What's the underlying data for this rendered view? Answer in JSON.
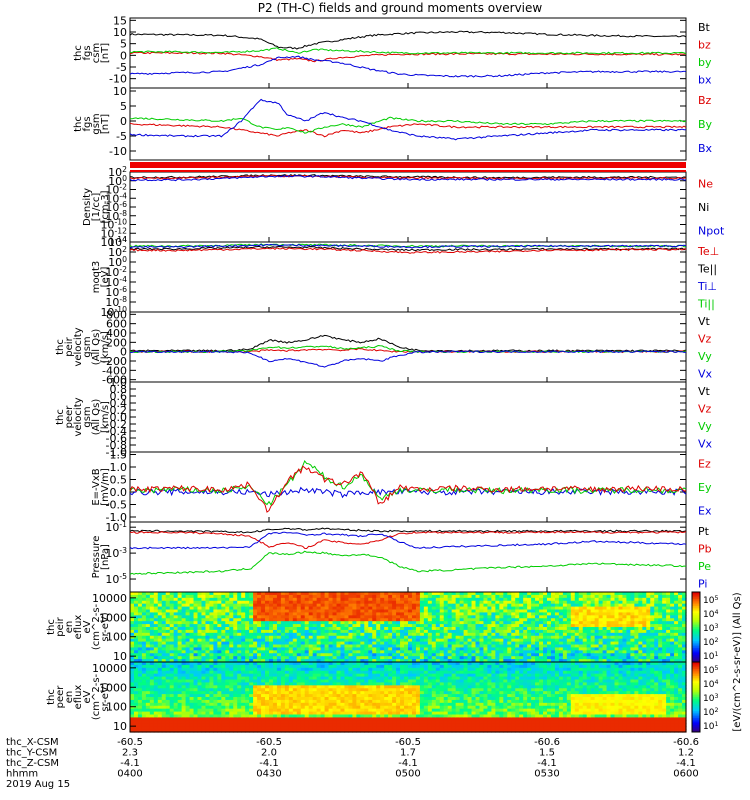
{
  "title": "P2 (TH-C) fields and ground moments overview",
  "footer": {
    "row_labels": [
      "thc_X-CSM",
      "thc_Y-CSM",
      "thc_Z-CSM",
      "hhmm",
      "2019 Aug 15"
    ],
    "ticks": [
      {
        "x": "-60.5",
        "y": "2.3",
        "z": "-4.1",
        "t": "0400"
      },
      {
        "x": "-60.5",
        "y": "2.0",
        "z": "-4.1",
        "t": "0430"
      },
      {
        "x": "-60.5",
        "y": "1.7",
        "z": "-4.1",
        "t": "0500"
      },
      {
        "x": "-60.6",
        "y": "1.5",
        "z": "-4.1",
        "t": "0530"
      },
      {
        "x": "-60.6",
        "y": "1.2",
        "z": "-4.1",
        "t": "0600"
      }
    ]
  },
  "colorbars": {
    "ticks": [
      "10^1",
      "10^2",
      "10^3",
      "10^4",
      "10^5"
    ],
    "label": "[eV/(cm^2-s-sr-eV)] (All Qs)"
  },
  "colors": {
    "black": "#000000",
    "red": "#dd0000",
    "green": "#00cc00",
    "blue": "#0000dd"
  },
  "chart_data": [
    {
      "id": "fgs_csm",
      "type": "line",
      "ylabel": [
        "thc",
        "fgs",
        "csm",
        "[nT]"
      ],
      "yticks": [
        "15",
        "10",
        "5",
        "0",
        "-5",
        "-10"
      ],
      "ylim": [
        -14,
        16
      ],
      "legend": [
        {
          "name": "Bt",
          "color": "#000000"
        },
        {
          "name": "bz",
          "color": "#dd0000"
        },
        {
          "name": "by",
          "color": "#00cc00"
        },
        {
          "name": "bx",
          "color": "#0000dd"
        }
      ],
      "x": [
        0,
        10,
        20,
        28,
        32,
        36,
        40,
        45,
        52,
        58,
        62,
        70,
        80,
        90,
        100,
        110,
        120
      ],
      "series": [
        {
          "name": "Bt",
          "color": "#000000",
          "values": [
            9,
            8.8,
            8.6,
            7,
            3.5,
            3,
            5,
            6.5,
            8.5,
            9.3,
            9.6,
            10,
            9.8,
            9,
            8.5,
            8.2,
            8
          ]
        },
        {
          "name": "bz",
          "color": "#dd0000",
          "values": [
            1,
            1,
            0.9,
            -0.5,
            -2,
            -1.5,
            -2.5,
            -1,
            0,
            0.5,
            0.5,
            0.6,
            0.6,
            0.5,
            0.5,
            0.4,
            0.4
          ]
        },
        {
          "name": "by",
          "color": "#00cc00",
          "values": [
            1.5,
            1.5,
            1.2,
            2,
            3,
            1,
            2.5,
            2,
            1.5,
            1,
            1,
            1,
            1,
            1,
            1,
            1,
            1
          ]
        },
        {
          "name": "bx",
          "color": "#0000dd",
          "values": [
            -8,
            -7.5,
            -7,
            -4,
            -1,
            -0.5,
            -2,
            -3,
            -6,
            -8,
            -8.5,
            -9,
            -8.8,
            -7.5,
            -7,
            -7,
            -7
          ]
        }
      ]
    },
    {
      "id": "fgs_gsm",
      "type": "line",
      "ylabel": [
        "thc",
        "fgs",
        "gsm",
        "[nT]"
      ],
      "yticks": [
        "10",
        "5",
        "0",
        "-5",
        "-10"
      ],
      "ylim": [
        -13,
        11
      ],
      "legend": [
        {
          "name": "Bz",
          "color": "#dd0000"
        },
        {
          "name": "By",
          "color": "#00cc00"
        },
        {
          "name": "Bx",
          "color": "#0000dd"
        }
      ],
      "x": [
        0,
        10,
        20,
        24,
        28,
        32,
        34,
        38,
        42,
        46,
        50,
        56,
        62,
        70,
        80,
        90,
        100,
        110,
        120
      ],
      "series": [
        {
          "name": "Bz",
          "color": "#dd0000",
          "values": [
            -1,
            -1.5,
            -2,
            -3,
            -4,
            -5,
            -4,
            -3,
            -5,
            -3,
            -4,
            -2,
            -1,
            -2,
            -2,
            -2,
            -2,
            -2,
            -2
          ]
        },
        {
          "name": "By",
          "color": "#00cc00",
          "values": [
            1,
            0.5,
            0,
            1,
            -2,
            -3,
            -2,
            -4,
            -2,
            -1,
            -2,
            1,
            0,
            0,
            -1,
            -1,
            0,
            0,
            0
          ]
        },
        {
          "name": "Bx",
          "color": "#0000dd",
          "values": [
            -4.5,
            -5,
            -5,
            0,
            7,
            6,
            2,
            0,
            3,
            1,
            0,
            -3,
            -5,
            -6,
            -5,
            -4,
            -3,
            -3,
            -3
          ]
        }
      ]
    },
    {
      "id": "density",
      "type": "line",
      "log": true,
      "ylabel": [
        "Density",
        "[1/cc]",
        "[cm-3]"
      ],
      "yticks": [
        "10^2",
        "10^0",
        "10^-2",
        "10^-4",
        "10^-6",
        "10^-8",
        "10^-10",
        "10^-12",
        "10^-14"
      ],
      "ylim": [
        -14,
        2
      ],
      "legend": [
        {
          "name": "Ne",
          "color": "#dd0000"
        },
        {
          "name": "Ni",
          "color": "#000000"
        },
        {
          "name": "Npot",
          "color": "#0000dd"
        }
      ],
      "x": [
        0,
        10,
        20,
        30,
        40,
        50,
        60,
        70,
        80,
        90,
        100,
        110,
        120
      ],
      "series": [
        {
          "name": "Ni",
          "color": "#000000",
          "values": [
            0.8,
            0.8,
            1,
            1.3,
            1.2,
            1,
            0.9,
            0.8,
            0.7,
            0.8,
            0.8,
            0.8,
            0.8
          ]
        },
        {
          "name": "Ne",
          "color": "#dd0000",
          "values": [
            0.6,
            0.6,
            0.8,
            1.1,
            1,
            0.8,
            0.6,
            0.6,
            0.5,
            0.6,
            0.6,
            0.6,
            0.6
          ]
        },
        {
          "name": "Npot",
          "color": "#0000dd",
          "values": [
            0.2,
            0.2,
            0.5,
            1,
            1,
            0.6,
            0.3,
            0.3,
            0.3,
            0.3,
            0.3,
            0.3,
            0.3
          ]
        }
      ]
    },
    {
      "id": "moms",
      "type": "line",
      "log": true,
      "ylabel": [
        "moqt3",
        "[eV]"
      ],
      "yticks": [
        "10^4",
        "10^2",
        "10^0",
        "10^-2",
        "10^-4",
        "10^-6",
        "10^-8",
        "10^-10"
      ],
      "ylim": [
        -10,
        4
      ],
      "legend": [
        {
          "name": "Te⊥",
          "color": "#dd0000"
        },
        {
          "name": "Te||",
          "color": "#000000"
        },
        {
          "name": "Ti⊥",
          "color": "#0000dd"
        },
        {
          "name": "Ti||",
          "color": "#00cc00"
        }
      ],
      "x": [
        0,
        10,
        20,
        30,
        40,
        50,
        60,
        70,
        80,
        90,
        100,
        110,
        120
      ],
      "series": [
        {
          "name": "Ti||",
          "color": "#00cc00",
          "values": [
            3.2,
            3.2,
            3.3,
            3.5,
            3.4,
            3.3,
            3.2,
            3.2,
            3.2,
            3.2,
            3.2,
            3.2,
            3.2
          ]
        },
        {
          "name": "Ti⊥",
          "color": "#0000dd",
          "values": [
            3.0,
            3.0,
            3.2,
            3.4,
            3.3,
            3.2,
            3.0,
            3.1,
            3.1,
            3.2,
            3.2,
            3.2,
            3.2
          ]
        },
        {
          "name": "Te||",
          "color": "#000000",
          "values": [
            2.6,
            2.6,
            2.8,
            3.0,
            2.9,
            2.6,
            2.4,
            2.5,
            2.5,
            2.6,
            2.6,
            2.6,
            2.6
          ]
        },
        {
          "name": "Te⊥",
          "color": "#dd0000",
          "values": [
            2.4,
            2.3,
            2.5,
            2.7,
            2.6,
            2.3,
            1.9,
            2.0,
            2.1,
            2.4,
            2.4,
            2.5,
            2.5
          ]
        }
      ]
    },
    {
      "id": "peir_vel",
      "type": "line",
      "ylabel": [
        "thc",
        "peir",
        "velocity",
        "gsm",
        "(All Qs)",
        "[km/s]"
      ],
      "yticks": [
        "800",
        "600",
        "400",
        "200",
        "0",
        "-200",
        "-400",
        "-600"
      ],
      "ylim": [
        -650,
        850
      ],
      "legend": [
        {
          "name": "Vt",
          "color": "#000000"
        },
        {
          "name": "Vz",
          "color": "#dd0000"
        },
        {
          "name": "Vy",
          "color": "#00cc00"
        },
        {
          "name": "Vx",
          "color": "#0000dd"
        }
      ],
      "x": [
        0,
        10,
        20,
        26,
        30,
        34,
        38,
        42,
        46,
        50,
        54,
        58,
        62,
        70,
        80,
        90,
        100,
        110,
        120
      ],
      "series": [
        {
          "name": "Vt",
          "color": "#000000",
          "values": [
            20,
            20,
            20,
            50,
            250,
            200,
            250,
            350,
            250,
            200,
            280,
            100,
            30,
            20,
            20,
            20,
            20,
            20,
            20
          ]
        },
        {
          "name": "Vz",
          "color": "#dd0000",
          "values": [
            0,
            0,
            0,
            0,
            30,
            20,
            40,
            50,
            30,
            60,
            20,
            0,
            0,
            0,
            0,
            0,
            0,
            0,
            0
          ]
        },
        {
          "name": "Vy",
          "color": "#00cc00",
          "values": [
            0,
            0,
            0,
            20,
            100,
            80,
            100,
            120,
            60,
            80,
            120,
            20,
            0,
            0,
            0,
            0,
            0,
            0,
            0
          ]
        },
        {
          "name": "Vx",
          "color": "#0000dd",
          "values": [
            0,
            0,
            0,
            -30,
            -200,
            -150,
            -220,
            -330,
            -200,
            -150,
            -200,
            -80,
            -10,
            0,
            0,
            0,
            0,
            0,
            0
          ]
        }
      ]
    },
    {
      "id": "peer_vel",
      "type": "line",
      "ylabel": [
        "thc",
        "peer",
        "velocity",
        "gsm",
        "(All Qs)",
        "[km/s]"
      ],
      "yticks": [
        "1.0",
        "0.8",
        "0.6",
        "0.4",
        "0.2",
        "0.0",
        "-0.2",
        "-0.4",
        "-0.6",
        "-0.8",
        "-1.0"
      ],
      "ylim": [
        -1.0,
        1.0
      ],
      "legend": [
        {
          "name": "Vt",
          "color": "#000000"
        },
        {
          "name": "Vz",
          "color": "#dd0000"
        },
        {
          "name": "Vy",
          "color": "#00cc00"
        },
        {
          "name": "Vx",
          "color": "#0000dd"
        }
      ],
      "x": [],
      "series": []
    },
    {
      "id": "efield",
      "type": "line",
      "ylabel": [
        "E=-VxB",
        "[mV/m]"
      ],
      "yticks": [
        "1.5",
        "1.0",
        "0.5",
        "0.0",
        "-0.5",
        "-1.0"
      ],
      "ylim": [
        -1.2,
        1.6
      ],
      "legend": [
        {
          "name": "Ez",
          "color": "#dd0000"
        },
        {
          "name": "Ey",
          "color": "#00cc00"
        },
        {
          "name": "Ex",
          "color": "#0000dd"
        }
      ],
      "x": [
        0,
        10,
        20,
        26,
        30,
        34,
        38,
        42,
        46,
        50,
        54,
        58,
        62,
        70,
        80,
        90,
        100,
        110,
        120
      ],
      "series": [
        {
          "name": "Ex",
          "color": "#0000dd",
          "values": [
            0,
            0,
            0,
            0,
            -0.1,
            0,
            0.1,
            0,
            -0.1,
            0,
            0,
            0,
            0,
            0,
            0,
            0,
            0,
            0,
            0
          ]
        },
        {
          "name": "Ey",
          "color": "#00cc00",
          "values": [
            0.05,
            0.1,
            0.05,
            0.2,
            -0.5,
            0.3,
            1.2,
            0.6,
            0.2,
            0.7,
            -0.3,
            0.1,
            0.05,
            0.1,
            0.05,
            0.1,
            0.05,
            0.1,
            0.05
          ]
        },
        {
          "name": "Ez",
          "color": "#dd0000",
          "values": [
            0.1,
            0.15,
            0.1,
            0.3,
            -0.8,
            0.5,
            1.0,
            0.5,
            0.3,
            0.8,
            -0.5,
            0.2,
            0.1,
            0.15,
            0.1,
            0.15,
            0.1,
            0.15,
            0.1
          ]
        }
      ]
    },
    {
      "id": "pressure",
      "type": "line",
      "log": true,
      "ylabel": [
        "Pressure",
        "[nPa]"
      ],
      "yticks": [
        "10^-1",
        "10^-3",
        "10^-5"
      ],
      "ylim": [
        -6,
        -0.6
      ],
      "legend": [
        {
          "name": "Pt",
          "color": "#000000"
        },
        {
          "name": "Pb",
          "color": "#dd0000"
        },
        {
          "name": "Pe",
          "color": "#00cc00"
        },
        {
          "name": "Pi",
          "color": "#0000dd"
        }
      ],
      "x": [
        0,
        10,
        20,
        26,
        30,
        34,
        38,
        42,
        46,
        50,
        54,
        58,
        62,
        70,
        80,
        90,
        100,
        110,
        120
      ],
      "series": [
        {
          "name": "Pt",
          "color": "#000000",
          "values": [
            -1.3,
            -1.3,
            -1.35,
            -1.4,
            -1.2,
            -1.1,
            -1.2,
            -1.1,
            -1.2,
            -1.25,
            -1.3,
            -1.3,
            -1.3,
            -1.3,
            -1.3,
            -1.3,
            -1.3,
            -1.3,
            -1.3
          ]
        },
        {
          "name": "Pb",
          "color": "#dd0000",
          "values": [
            -1.4,
            -1.4,
            -1.5,
            -1.7,
            -2.5,
            -2.2,
            -2.6,
            -2.0,
            -2.2,
            -2.3,
            -2.0,
            -1.5,
            -1.4,
            -1.4,
            -1.4,
            -1.4,
            -1.4,
            -1.4,
            -1.4
          ]
        },
        {
          "name": "Pi",
          "color": "#0000dd",
          "values": [
            -2.6,
            -2.6,
            -2.6,
            -2.5,
            -1.5,
            -1.4,
            -1.6,
            -1.5,
            -1.6,
            -1.7,
            -1.5,
            -2.1,
            -2.6,
            -2.5,
            -2.4,
            -2.3,
            -2.1,
            -2.2,
            -2.3
          ]
        },
        {
          "name": "Pe",
          "color": "#00cc00",
          "values": [
            -4.6,
            -4.5,
            -4.4,
            -4.2,
            -3.0,
            -3.1,
            -2.9,
            -3.0,
            -3.2,
            -3.1,
            -3.3,
            -4.0,
            -4.4,
            -4.3,
            -4.1,
            -4.0,
            -3.8,
            -3.9,
            -4.0
          ]
        }
      ]
    },
    {
      "id": "peir_spec",
      "type": "heatmap",
      "ylabel": [
        "thc",
        "peir",
        "en",
        "eflux",
        "eV",
        "(cm^2-s-",
        "sr-eV)"
      ],
      "yticks": [
        "10000",
        "1000",
        "100",
        "10"
      ],
      "ylim": [
        5,
        20000
      ],
      "zlim": [
        1,
        5
      ]
    },
    {
      "id": "peer_spec",
      "type": "heatmap",
      "ylabel": [
        "thc",
        "peer",
        "en",
        "eflux",
        "eV",
        "(cm^2-s-",
        "sr-eV)"
      ],
      "yticks": [
        "10000",
        "1000",
        "100",
        "10"
      ],
      "ylim": [
        5,
        20000
      ],
      "zlim": [
        1,
        5
      ]
    }
  ]
}
